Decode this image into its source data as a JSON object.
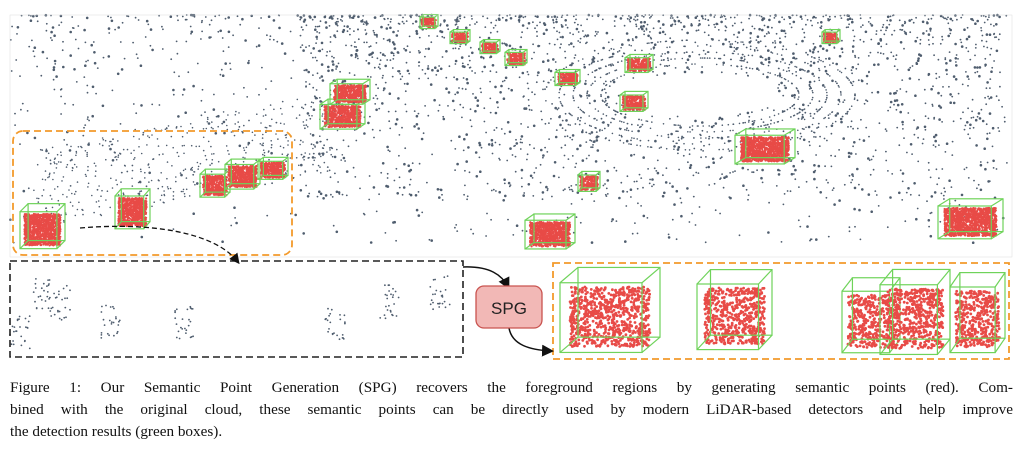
{
  "figure": {
    "module_label": "SPG",
    "caption_lines": [
      "Figure 1: Our Semantic Point Generation (SPG) recovers the foreground regions by generating semantic points (red). Com-",
      "bined with the original cloud, these semantic points can be directly used by modern LiDAR-based detectors and help improve",
      "the detection results (green boxes)."
    ]
  },
  "colors": {
    "background_points": "#4f5d6e",
    "semantic_points": "#e84b47",
    "detection_boxes": "#6fd35a",
    "highlight_dashed": "#f39a2b",
    "input_dashed": "#222222",
    "spg_fill": "#f2b8b6",
    "spg_border": "#c9534f"
  }
}
